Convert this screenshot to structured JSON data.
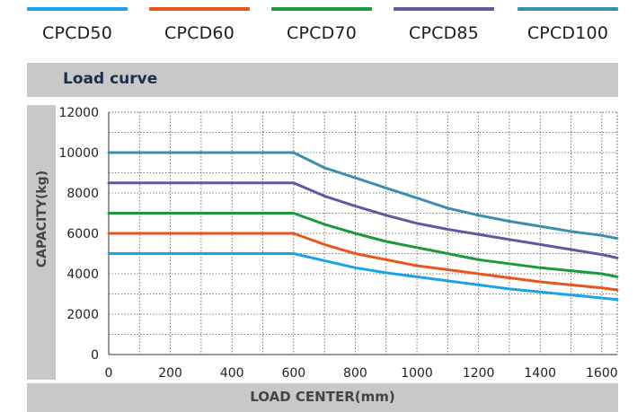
{
  "chart_data": {
    "type": "line",
    "title": "Load curve",
    "xlabel": "LOAD CENTER(mm)",
    "ylabel": "CAPACITY(kg)",
    "xlim": [
      0,
      1650
    ],
    "ylim": [
      0,
      12000
    ],
    "xticks": [
      0,
      200,
      400,
      600,
      800,
      1000,
      1200,
      1400,
      1600
    ],
    "yticks": [
      0,
      2000,
      4000,
      6000,
      8000,
      10000,
      12000
    ],
    "grid": true,
    "legend_position": "top",
    "series": [
      {
        "name": "CPCD50",
        "color": "#1aa3e8",
        "x": [
          0,
          600,
          700,
          800,
          900,
          1000,
          1100,
          1200,
          1300,
          1400,
          1500,
          1600,
          1650
        ],
        "y": [
          5000,
          5000,
          4650,
          4300,
          4050,
          3850,
          3650,
          3450,
          3250,
          3100,
          2950,
          2800,
          2720
        ]
      },
      {
        "name": "CPCD60",
        "color": "#e8561e",
        "x": [
          0,
          600,
          700,
          800,
          900,
          1000,
          1100,
          1200,
          1300,
          1400,
          1500,
          1600,
          1650
        ],
        "y": [
          6000,
          6000,
          5450,
          5000,
          4700,
          4400,
          4200,
          4000,
          3800,
          3600,
          3450,
          3300,
          3200
        ]
      },
      {
        "name": "CPCD70",
        "color": "#1a9a3a",
        "x": [
          0,
          600,
          700,
          800,
          900,
          1000,
          1100,
          1200,
          1300,
          1400,
          1500,
          1600,
          1650
        ],
        "y": [
          7000,
          7000,
          6450,
          6000,
          5600,
          5300,
          5000,
          4700,
          4500,
          4300,
          4150,
          4000,
          3850
        ]
      },
      {
        "name": "CPCD85",
        "color": "#6a54a0",
        "x": [
          0,
          600,
          700,
          800,
          900,
          1000,
          1100,
          1200,
          1300,
          1400,
          1500,
          1600,
          1650
        ],
        "y": [
          8500,
          8500,
          7850,
          7350,
          6900,
          6500,
          6200,
          5950,
          5700,
          5450,
          5200,
          4950,
          4780
        ]
      },
      {
        "name": "CPCD100",
        "color": "#3b8fae",
        "x": [
          0,
          600,
          700,
          800,
          900,
          1000,
          1100,
          1200,
          1300,
          1400,
          1500,
          1600,
          1650
        ],
        "y": [
          10000,
          10000,
          9250,
          8750,
          8250,
          7750,
          7250,
          6900,
          6600,
          6350,
          6100,
          5900,
          5750
        ]
      }
    ]
  }
}
